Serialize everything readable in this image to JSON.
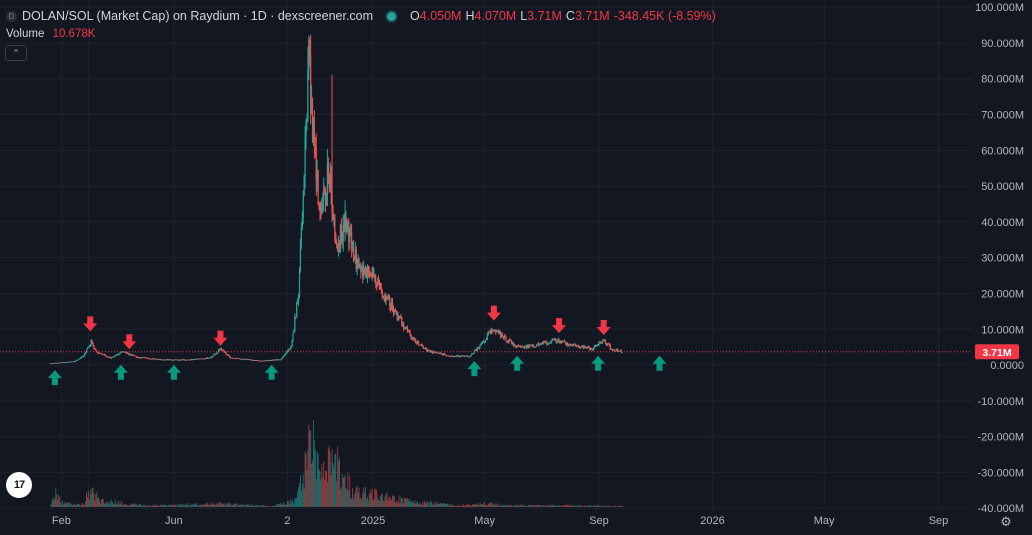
{
  "header": {
    "symbol_icon": "D",
    "title": "DOLAN/SOL (Market Cap) on Raydium · 1D · dexscreener.com",
    "ohlc": [
      {
        "key": "O",
        "value": "4.050M"
      },
      {
        "key": "H",
        "value": "4.070M"
      },
      {
        "key": "L",
        "value": "3.71M"
      },
      {
        "key": "C",
        "value": "3.71M"
      },
      {
        "key": "",
        "value": "-348.45K (-8.59%)"
      }
    ],
    "status_color": "#26a69a"
  },
  "volume_legend": {
    "label": "Volume",
    "value": "10.678K"
  },
  "icons": {
    "symbol": "symbol-icon",
    "status": "live-status-dot",
    "collapse": "chevron-up-icon",
    "logo": "tradingview-logo",
    "settings": "gear-icon"
  },
  "logo_text": "17",
  "price_label": {
    "text": "3.71M",
    "color": "#f23645"
  },
  "colors": {
    "up": "#26a69a",
    "down": "#ef5350",
    "buy_arrow": "#089981",
    "sell_arrow": "#f23645",
    "background": "#131722",
    "grid": "#1e222d"
  },
  "chart_data": {
    "type": "candlestick",
    "title": "DOLAN/SOL (Market Cap) on Raydium · 1D · dexscreener.com",
    "x_ticks": [
      {
        "label": "Feb",
        "date": "2024-02-01"
      },
      {
        "label": "Jun",
        "date": "2024-06-01"
      },
      {
        "label": "2",
        "date": "2024-10-01"
      },
      {
        "label": "2025",
        "date": "2025-01-01"
      },
      {
        "label": "May",
        "date": "2025-05-01"
      },
      {
        "label": "Sep",
        "date": "2025-09-01"
      },
      {
        "label": "2026",
        "date": "2026-01-01"
      },
      {
        "label": "May",
        "date": "2026-05-01"
      },
      {
        "label": "Sep",
        "date": "2026-09-01"
      }
    ],
    "x_ticks_extra": [
      {
        "label": "",
        "date": "2024-03-01"
      }
    ],
    "xlim": [
      "2023-11-27",
      "2026-10-07"
    ],
    "y_ticks": [
      {
        "value": 100,
        "label": "100.000M"
      },
      {
        "value": 90,
        "label": "90.000M"
      },
      {
        "value": 80,
        "label": "80.000M"
      },
      {
        "value": 70,
        "label": "70.000M"
      },
      {
        "value": 60,
        "label": "60.000M"
      },
      {
        "value": 50,
        "label": "50.000M"
      },
      {
        "value": 40,
        "label": "40.000M"
      },
      {
        "value": 30,
        "label": "30.000M"
      },
      {
        "value": 20,
        "label": "20.000M"
      },
      {
        "value": 10,
        "label": "10.000M"
      },
      {
        "value": 0,
        "label": "0.0000"
      },
      {
        "value": -10,
        "label": "-10.000M"
      },
      {
        "value": -20,
        "label": "-20.000M"
      },
      {
        "value": -30,
        "label": "-30.000M"
      },
      {
        "value": -40,
        "label": "-40.000M"
      }
    ],
    "ylim": [
      -40.5,
      102
    ],
    "y_unit": "M",
    "grid": true,
    "current_value": 3.71,
    "price_anchors": [
      [
        "2024-01-20",
        0.5
      ],
      [
        "2024-02-15",
        1.0
      ],
      [
        "2024-02-25",
        2.5
      ],
      [
        "2024-03-04",
        6.5
      ],
      [
        "2024-03-10",
        3.5
      ],
      [
        "2024-03-25",
        2.0
      ],
      [
        "2024-04-08",
        3.8
      ],
      [
        "2024-04-22",
        2.2
      ],
      [
        "2024-05-20",
        1.5
      ],
      [
        "2024-06-20",
        1.5
      ],
      [
        "2024-07-10",
        2.0
      ],
      [
        "2024-07-22",
        4.5
      ],
      [
        "2024-08-01",
        2.0
      ],
      [
        "2024-09-01",
        1.2
      ],
      [
        "2024-09-24",
        1.5
      ],
      [
        "2024-10-05",
        5.0
      ],
      [
        "2024-10-13",
        20.0
      ],
      [
        "2024-10-18",
        50.0
      ],
      [
        "2024-10-24",
        84.0
      ],
      [
        "2024-10-30",
        60.0
      ],
      [
        "2024-11-06",
        40.0
      ],
      [
        "2024-11-14",
        55.0
      ],
      [
        "2024-11-22",
        35.0
      ],
      [
        "2024-12-05",
        38.0
      ],
      [
        "2024-12-15",
        28.0
      ],
      [
        "2024-12-30",
        25.0
      ],
      [
        "2025-01-12",
        20.0
      ],
      [
        "2025-01-25",
        15.0
      ],
      [
        "2025-02-10",
        8.0
      ],
      [
        "2025-03-01",
        4.0
      ],
      [
        "2025-03-25",
        2.5
      ],
      [
        "2025-04-15",
        2.5
      ],
      [
        "2025-04-28",
        6.0
      ],
      [
        "2025-05-10",
        10.5
      ],
      [
        "2025-05-20",
        8.0
      ],
      [
        "2025-06-05",
        5.0
      ],
      [
        "2025-06-25",
        5.5
      ],
      [
        "2025-07-15",
        7.0
      ],
      [
        "2025-07-28",
        6.0
      ],
      [
        "2025-08-15",
        5.0
      ],
      [
        "2025-08-25",
        4.5
      ],
      [
        "2025-09-05",
        7.0
      ],
      [
        "2025-09-15",
        4.5
      ],
      [
        "2025-09-26",
        3.71
      ]
    ],
    "spikes": [
      {
        "date": "2024-10-23",
        "value": 89.0
      },
      {
        "date": "2024-11-18",
        "value": 81.0
      },
      {
        "date": "2024-12-02",
        "value": 46.0
      }
    ],
    "volume": {
      "label": "Volume",
      "axis_max": 100,
      "anchors": [
        [
          "2024-01-20",
          0.0
        ],
        [
          "2024-01-25",
          16.0
        ],
        [
          "2024-02-02",
          5.0
        ],
        [
          "2024-02-25",
          3.0
        ],
        [
          "2024-03-04",
          25.0
        ],
        [
          "2024-03-12",
          8.0
        ],
        [
          "2024-05-01",
          2.0
        ],
        [
          "2024-07-22",
          4.0
        ],
        [
          "2024-09-15",
          1.0
        ],
        [
          "2024-10-10",
          8.0
        ],
        [
          "2024-10-20",
          45.0
        ],
        [
          "2024-10-25",
          100.0
        ],
        [
          "2024-11-05",
          40.0
        ],
        [
          "2024-11-20",
          55.0
        ],
        [
          "2024-12-10",
          20.0
        ],
        [
          "2025-01-15",
          12.0
        ],
        [
          "2025-02-15",
          6.0
        ],
        [
          "2025-04-01",
          2.0
        ],
        [
          "2025-05-01",
          4.0
        ],
        [
          "2025-06-01",
          2.0
        ],
        [
          "2025-08-01",
          2.0
        ],
        [
          "2025-09-26",
          1.0
        ]
      ]
    },
    "buy_signals": [
      {
        "date": "2024-01-25",
        "value": -3.5
      },
      {
        "date": "2024-04-05",
        "value": -2.0
      },
      {
        "date": "2024-06-01",
        "value": -2.0
      },
      {
        "date": "2024-09-14",
        "value": -2.0
      },
      {
        "date": "2025-04-20",
        "value": -1.0
      },
      {
        "date": "2025-06-05",
        "value": 0.5
      },
      {
        "date": "2025-08-31",
        "value": 0.5
      },
      {
        "date": "2025-11-05",
        "value": 0.5
      }
    ],
    "sell_signals": [
      {
        "date": "2024-03-03",
        "value": 11.5
      },
      {
        "date": "2024-04-14",
        "value": 6.5
      },
      {
        "date": "2024-07-21",
        "value": 7.5
      },
      {
        "date": "2025-05-11",
        "value": 14.5
      },
      {
        "date": "2025-07-20",
        "value": 11.0
      },
      {
        "date": "2025-09-06",
        "value": 10.5
      }
    ]
  }
}
